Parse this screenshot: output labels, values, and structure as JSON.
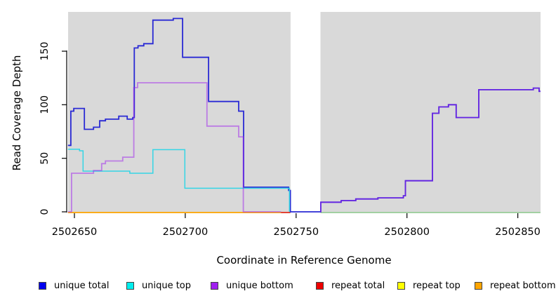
{
  "chart_data": {
    "type": "line",
    "title": "",
    "xlabel": "Coordinate in Reference Genome",
    "ylabel": "Read Coverage Depth",
    "xlim": [
      2502647.1,
      2502860.2
    ],
    "ylim": [
      0,
      187
    ],
    "x_ticks": [
      2502650,
      2502700,
      2502750,
      2502800,
      2502850
    ],
    "y_ticks": [
      0,
      50,
      100,
      150
    ],
    "grid": false,
    "plot_bg": "#d9d9d9",
    "masked_region": [
      2502747.5,
      2502761.0
    ],
    "legend_position": "bottom",
    "legend": [
      {
        "label": "unique total",
        "color": "#0000ee"
      },
      {
        "label": "unique top",
        "color": "#00eeee"
      },
      {
        "label": "unique bottom",
        "color": "#a020f0"
      },
      {
        "label": "repeat total",
        "color": "#ee0000"
      },
      {
        "label": "repeat top",
        "color": "#ffff00"
      },
      {
        "label": "repeat bottom",
        "color": "#ffa500"
      }
    ],
    "series": [
      {
        "name": "unique total",
        "color": "#2a2ad4",
        "width": 1.8,
        "opacity": 1,
        "step": "after",
        "segments": [
          {
            "end": 2502860.2,
            "points": [
              [
                2502647.1,
                62
              ],
              [
                2502648.4,
                94
              ],
              [
                2502649.7,
                96.5
              ],
              [
                2502654.5,
                77
              ],
              [
                2502658.6,
                79
              ],
              [
                2502661.4,
                85
              ],
              [
                2502664.0,
                86.5
              ],
              [
                2502670.0,
                89.3
              ],
              [
                2502673.8,
                86.5
              ],
              [
                2502676.3,
                88
              ],
              [
                2502677.0,
                153
              ],
              [
                2502678.7,
                155
              ],
              [
                2502681.3,
                157
              ],
              [
                2502685.4,
                179
              ],
              [
                2502694.6,
                180.5
              ],
              [
                2502698.8,
                144.3
              ],
              [
                2502710.5,
                103
              ],
              [
                2502724.1,
                94
              ],
              [
                2502726.3,
                23
              ],
              [
                2502746.6,
                20
              ],
              [
                2502747.4,
                0
              ],
              [
                2502761.1,
                9
              ],
              [
                2502770.3,
                10.5
              ],
              [
                2502776.9,
                12
              ],
              [
                2502786.9,
                13
              ],
              [
                2502798.4,
                15
              ],
              [
                2502799.3,
                29
              ],
              [
                2502811.5,
                92
              ],
              [
                2502814.4,
                98
              ],
              [
                2502818.7,
                100
              ],
              [
                2502822.2,
                88
              ],
              [
                2502832.4,
                114
              ],
              [
                2502857.0,
                115.5
              ],
              [
                2502859.6,
                112.5
              ]
            ]
          }
        ]
      },
      {
        "name": "unique top",
        "color": "#35d5e5",
        "width": 1.5,
        "opacity": 1,
        "step": "after",
        "segments": [
          {
            "end": null,
            "points": [
              [
                2502647.1,
                58.5
              ],
              [
                2502652.3,
                57
              ],
              [
                2502653.9,
                38
              ],
              [
                2502675.0,
                36
              ],
              [
                2502685.4,
                58
              ],
              [
                2502699.8,
                22
              ],
              [
                2502747.0,
                0
              ]
            ]
          }
        ]
      },
      {
        "name": "unique bottom",
        "color": "#a020f0",
        "width": 1.8,
        "opacity": 0.5,
        "step": "after",
        "segments": [
          {
            "end": 2502743.2,
            "points": [
              [
                2502647.1,
                0
              ],
              [
                2502648.7,
                36
              ],
              [
                2502658.6,
                38.5
              ],
              [
                2502662.3,
                45
              ],
              [
                2502664.0,
                47.5
              ],
              [
                2502671.8,
                51
              ],
              [
                2502676.8,
                116
              ],
              [
                2502678.5,
                120.5
              ],
              [
                2502709.8,
                80
              ],
              [
                2502724.1,
                70
              ],
              [
                2502726.2,
                0
              ]
            ]
          },
          {
            "end": 2502860.2,
            "points": [
              [
                2502761.0,
                0
              ],
              [
                2502761.1,
                9
              ],
              [
                2502770.3,
                10.5
              ],
              [
                2502776.9,
                12
              ],
              [
                2502786.9,
                13
              ],
              [
                2502798.4,
                15
              ],
              [
                2502799.3,
                29
              ],
              [
                2502811.5,
                92
              ],
              [
                2502814.4,
                98
              ],
              [
                2502818.7,
                100
              ],
              [
                2502822.2,
                88
              ],
              [
                2502832.4,
                114
              ],
              [
                2502857.0,
                115.5
              ],
              [
                2502859.6,
                112.5
              ]
            ]
          }
        ]
      },
      {
        "name": "repeat total",
        "color": "#e03535",
        "all_zero": true,
        "zero_segment": [
          2502743.2,
          2502747.4
        ]
      },
      {
        "name": "repeat top",
        "color": "#ffff00",
        "all_zero": true,
        "zero_segment": null
      },
      {
        "name": "repeat bottom",
        "color": "#ffa500",
        "all_zero": true,
        "zero_segment": [
          2502647.1,
          2502747.4
        ]
      }
    ],
    "zero_overlap_segment": {
      "color": "#8fce8f",
      "from": 2502761.0,
      "to": 2502860.2
    }
  }
}
